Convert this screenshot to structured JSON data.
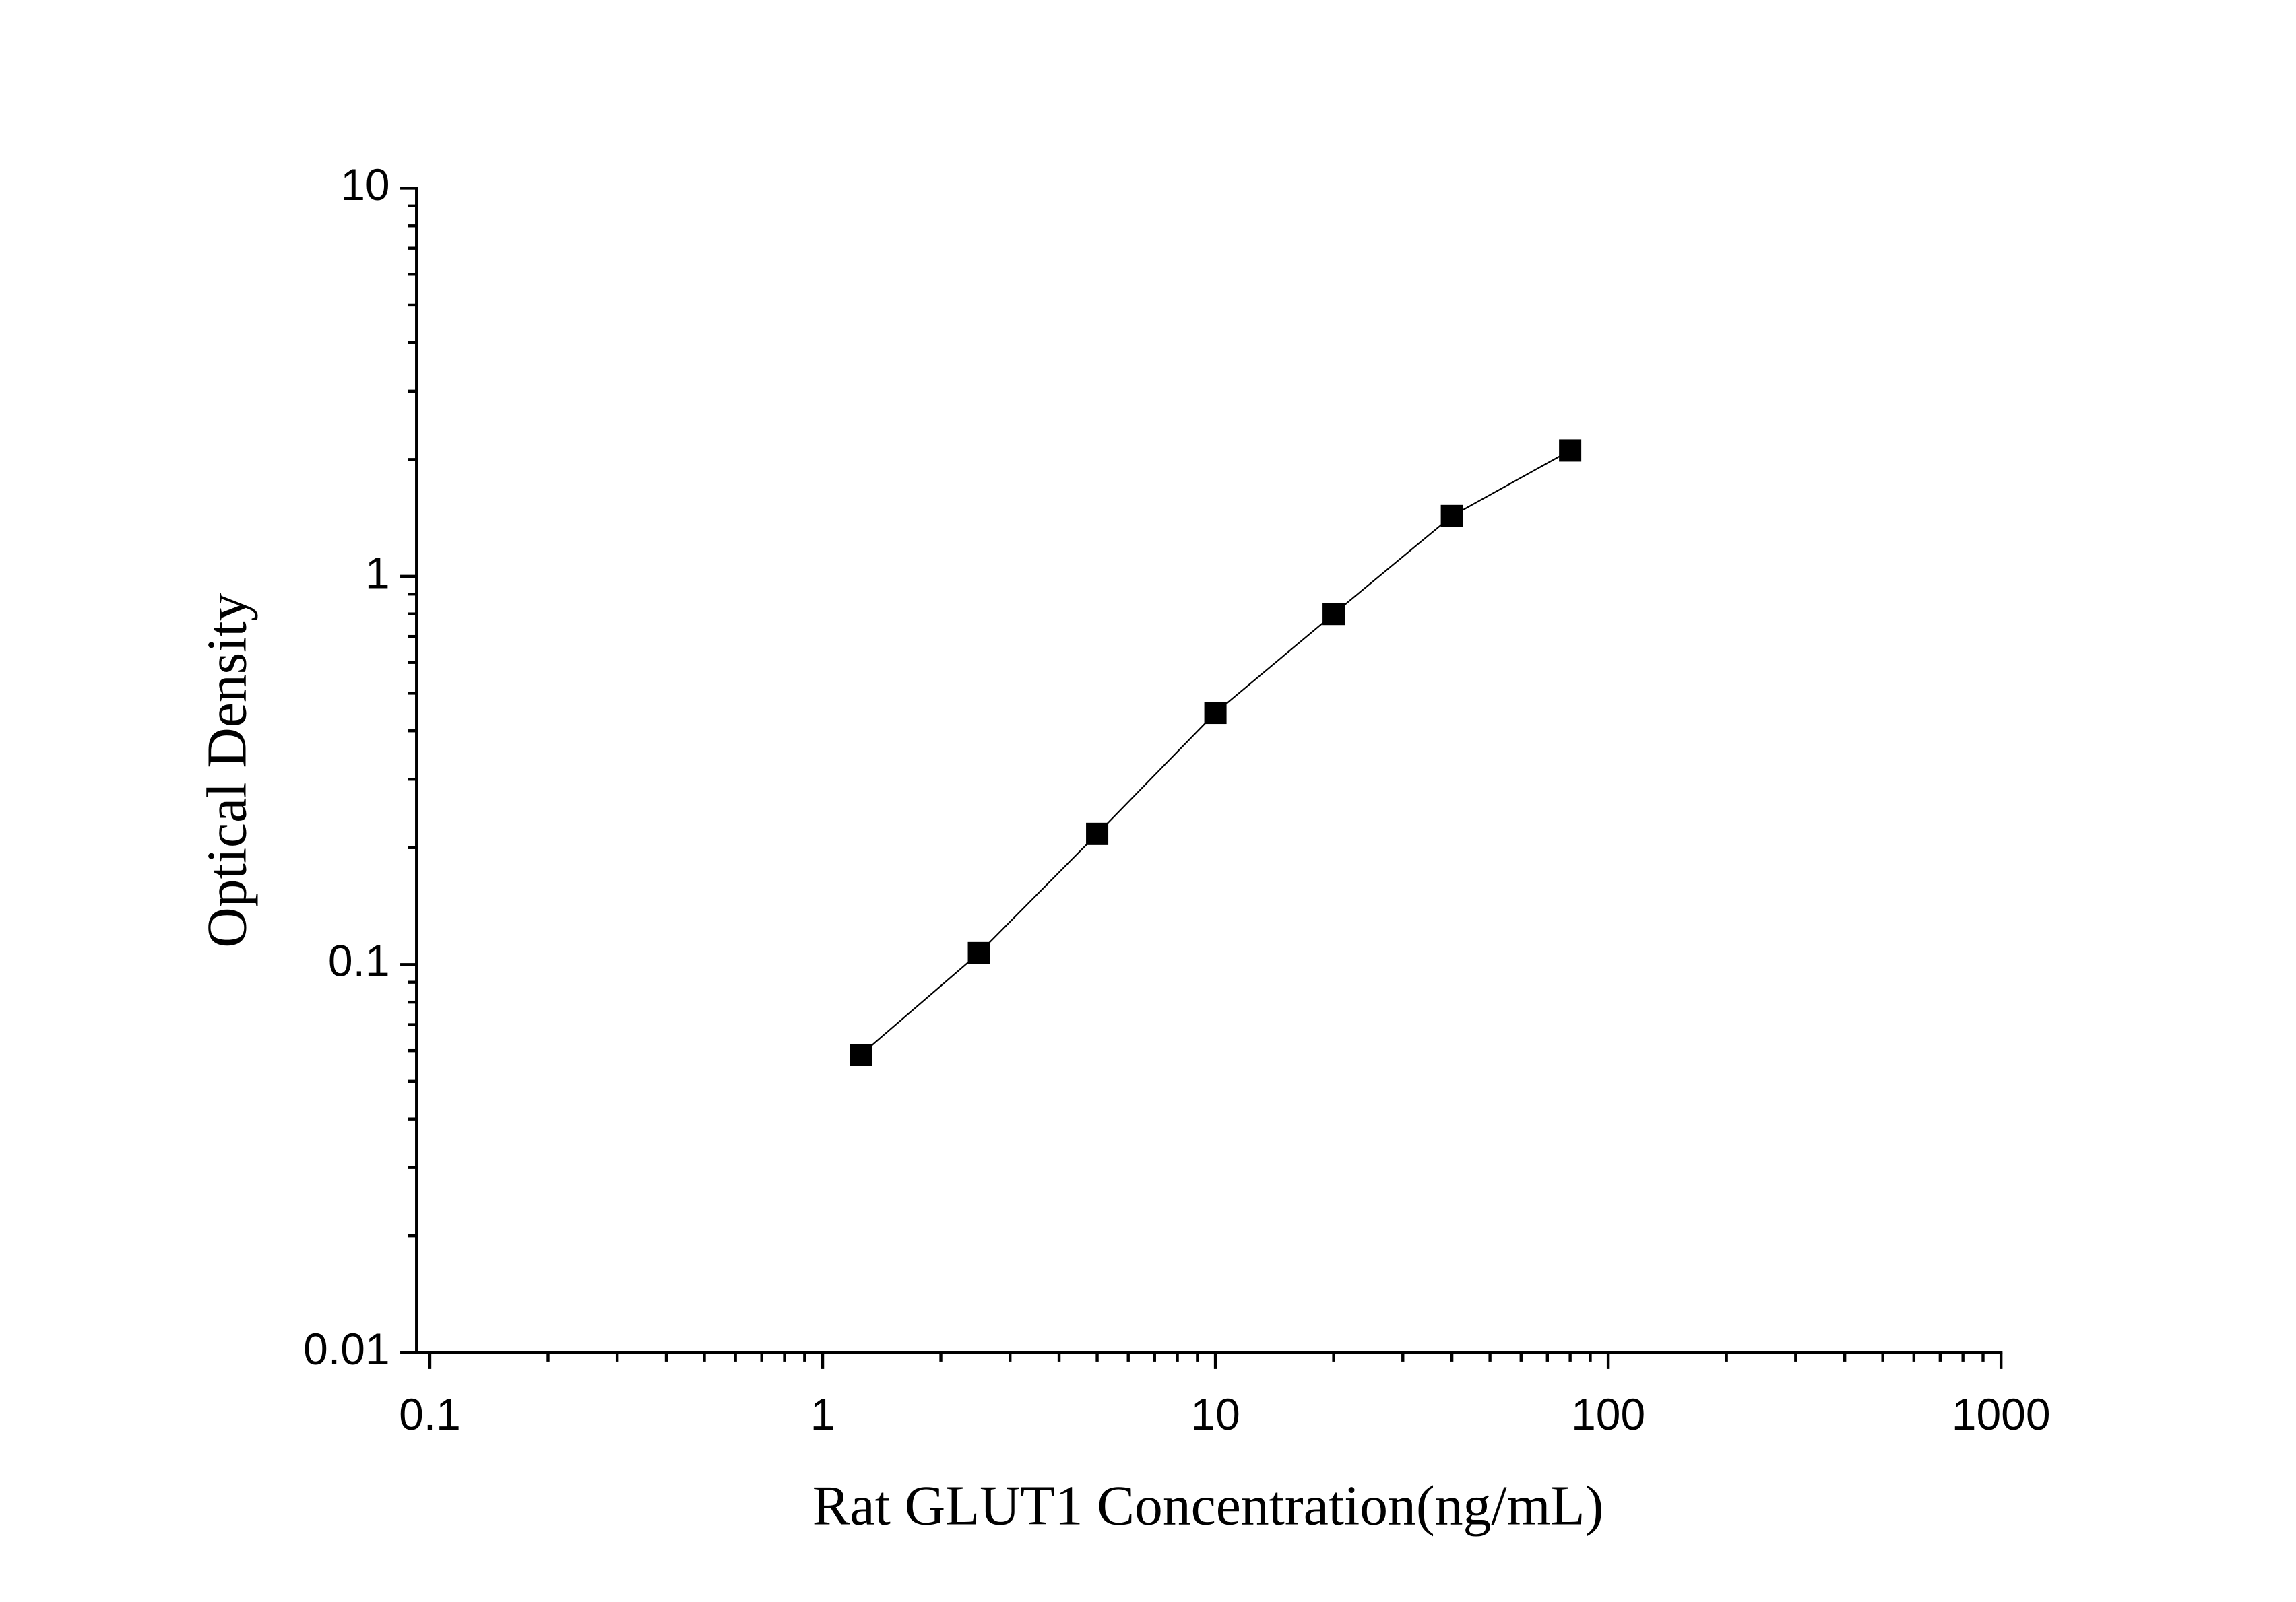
{
  "chart_data": {
    "type": "line",
    "x_label": "Rat GLUT1 Concentration(ng/mL)",
    "y_label": "Optical Density",
    "x": [
      1.25,
      2.5,
      5,
      10,
      20,
      40,
      80
    ],
    "series": [
      {
        "color": "#000000",
        "values": [
          0.0585,
          0.107,
          0.217,
          0.445,
          0.8,
          1.43,
          2.11
        ]
      }
    ],
    "xlim": [
      0.0925,
      1000
    ],
    "xticks": [
      0.1,
      1,
      10,
      100,
      1000
    ],
    "ylim": [
      0.01,
      10
    ],
    "yticks": [
      0.01,
      0.1,
      1,
      10
    ],
    "xscale": "log",
    "yscale": "log",
    "minor_ticks": true,
    "grid": false,
    "marker": "square"
  }
}
